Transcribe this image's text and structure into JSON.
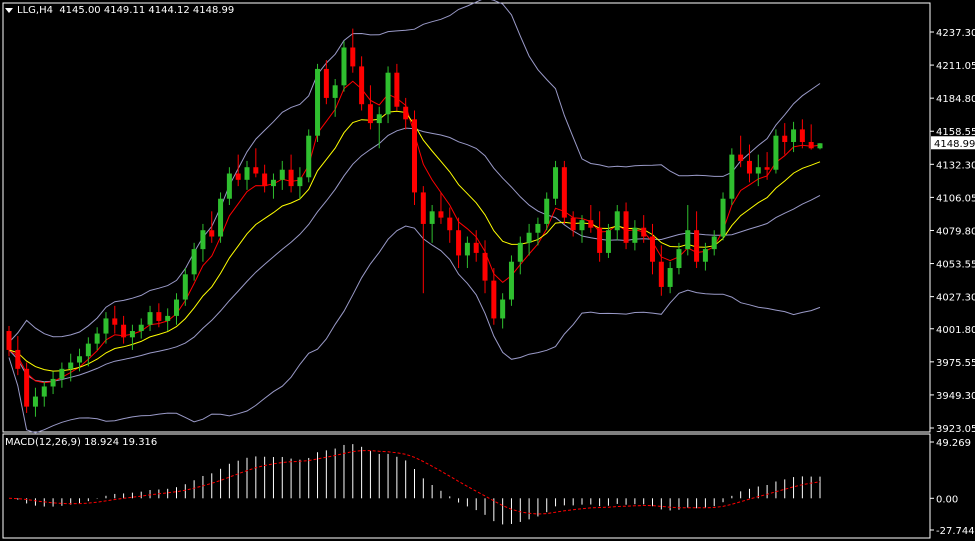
{
  "header": {
    "symbol": "LLG,H4",
    "ohlc": "4145.00 4149.11 4144.12 4148.99"
  },
  "price_axis": {
    "ticks": [
      "4237.30",
      "4211.05",
      "4184.80",
      "4158.55",
      "4132.30",
      "4106.05",
      "4079.80",
      "4053.55",
      "4027.30",
      "4001.80",
      "3975.55",
      "3949.30",
      "3923.05"
    ],
    "current_price": "4148.99",
    "min": 3923.05,
    "max": 4237.3
  },
  "macd": {
    "label": "MACD(12,26,9) 18.924 19.316",
    "ticks": [
      "49.269",
      "0.00",
      "-27.744"
    ],
    "min": -27.744,
    "max": 49.269
  },
  "colors": {
    "background": "#000000",
    "grid": "#ffffff",
    "bull": "#2fbf2f",
    "bear": "#ff0000",
    "ma_fast": "#ff0000",
    "ma_slow": "#ffff00",
    "bands": "#9a9ac8",
    "macd_hist": "#ffffff",
    "macd_signal": "#ff0000",
    "price_tag_bg": "#ffffff",
    "price_tag_text": "#000000"
  },
  "chart_data": {
    "type": "candlestick",
    "candles": [
      [
        4000,
        4004,
        3980,
        3985
      ],
      [
        3985,
        3996,
        3965,
        3970
      ],
      [
        3970,
        3975,
        3935,
        3940
      ],
      [
        3940,
        3955,
        3932,
        3948
      ],
      [
        3948,
        3960,
        3940,
        3956
      ],
      [
        3956,
        3968,
        3950,
        3962
      ],
      [
        3962,
        3975,
        3955,
        3970
      ],
      [
        3970,
        3982,
        3960,
        3975
      ],
      [
        3975,
        3986,
        3968,
        3980
      ],
      [
        3980,
        3995,
        3972,
        3990
      ],
      [
        3990,
        4003,
        3985,
        3998
      ],
      [
        3998,
        4015,
        3990,
        4010
      ],
      [
        4010,
        4020,
        3998,
        4005
      ],
      [
        4005,
        4012,
        3990,
        3995
      ],
      [
        3995,
        4005,
        3985,
        4000
      ],
      [
        4000,
        4010,
        3994,
        4005
      ],
      [
        4005,
        4020,
        4000,
        4015
      ],
      [
        4015,
        4022,
        4003,
        4008
      ],
      [
        4008,
        4018,
        4000,
        4012
      ],
      [
        4012,
        4030,
        4005,
        4025
      ],
      [
        4025,
        4050,
        4020,
        4045
      ],
      [
        4045,
        4070,
        4040,
        4065
      ],
      [
        4065,
        4085,
        4055,
        4080
      ],
      [
        4080,
        4095,
        4070,
        4075
      ],
      [
        4075,
        4110,
        4070,
        4105
      ],
      [
        4105,
        4130,
        4100,
        4125
      ],
      [
        4125,
        4140,
        4115,
        4120
      ],
      [
        4120,
        4135,
        4112,
        4130
      ],
      [
        4130,
        4145,
        4122,
        4125
      ],
      [
        4125,
        4132,
        4110,
        4115
      ],
      [
        4115,
        4125,
        4105,
        4120
      ],
      [
        4120,
        4135,
        4112,
        4128
      ],
      [
        4128,
        4140,
        4110,
        4115
      ],
      [
        4115,
        4130,
        4105,
        4122
      ],
      [
        4122,
        4160,
        4118,
        4155
      ],
      [
        4155,
        4212,
        4150,
        4208
      ],
      [
        4208,
        4215,
        4180,
        4185
      ],
      [
        4185,
        4200,
        4170,
        4195
      ],
      [
        4195,
        4230,
        4190,
        4225
      ],
      [
        4225,
        4240,
        4205,
        4210
      ],
      [
        4210,
        4218,
        4175,
        4180
      ],
      [
        4180,
        4195,
        4160,
        4165
      ],
      [
        4165,
        4178,
        4145,
        4172
      ],
      [
        4172,
        4210,
        4165,
        4205
      ],
      [
        4205,
        4212,
        4175,
        4178
      ],
      [
        4178,
        4185,
        4160,
        4168
      ],
      [
        4168,
        4175,
        4100,
        4110
      ],
      [
        4110,
        4115,
        4030,
        4085
      ],
      [
        4085,
        4100,
        4070,
        4095
      ],
      [
        4095,
        4110,
        4085,
        4090
      ],
      [
        4090,
        4098,
        4070,
        4080
      ],
      [
        4080,
        4090,
        4050,
        4060
      ],
      [
        4060,
        4075,
        4050,
        4070
      ],
      [
        4070,
        4080,
        4055,
        4062
      ],
      [
        4062,
        4072,
        4030,
        4040
      ],
      [
        4040,
        4050,
        4005,
        4010
      ],
      [
        4010,
        4030,
        4002,
        4025
      ],
      [
        4025,
        4060,
        4020,
        4055
      ],
      [
        4055,
        4075,
        4045,
        4070
      ],
      [
        4070,
        4085,
        4060,
        4078
      ],
      [
        4078,
        4090,
        4068,
        4085
      ],
      [
        4085,
        4110,
        4080,
        4105
      ],
      [
        4105,
        4135,
        4100,
        4130
      ],
      [
        4130,
        4135,
        4085,
        4090
      ],
      [
        4090,
        4095,
        4075,
        4080
      ],
      [
        4080,
        4092,
        4070,
        4088
      ],
      [
        4088,
        4100,
        4078,
        4082
      ],
      [
        4082,
        4095,
        4055,
        4062
      ],
      [
        4062,
        4085,
        4058,
        4080
      ],
      [
        4080,
        4100,
        4072,
        4095
      ],
      [
        4095,
        4102,
        4065,
        4070
      ],
      [
        4070,
        4088,
        4064,
        4082
      ],
      [
        4082,
        4092,
        4070,
        4075
      ],
      [
        4075,
        4085,
        4045,
        4055
      ],
      [
        4055,
        4068,
        4028,
        4035
      ],
      [
        4035,
        4055,
        4030,
        4050
      ],
      [
        4050,
        4070,
        4045,
        4065
      ],
      [
        4065,
        4100,
        4060,
        4080
      ],
      [
        4080,
        4095,
        4050,
        4055
      ],
      [
        4055,
        4070,
        4048,
        4065
      ],
      [
        4065,
        4080,
        4060,
        4075
      ],
      [
        4075,
        4110,
        4072,
        4105
      ],
      [
        4105,
        4145,
        4100,
        4140
      ],
      [
        4140,
        4155,
        4130,
        4135
      ],
      [
        4135,
        4148,
        4118,
        4125
      ],
      [
        4125,
        4140,
        4115,
        4130
      ],
      [
        4130,
        4142,
        4120,
        4128
      ],
      [
        4128,
        4160,
        4125,
        4155
      ],
      [
        4155,
        4165,
        4140,
        4150
      ],
      [
        4150,
        4166,
        4142,
        4160
      ],
      [
        4160,
        4168,
        4145,
        4150
      ],
      [
        4150,
        4164,
        4144,
        4145
      ],
      [
        4145,
        4149.11,
        4144.12,
        4148.99
      ]
    ]
  }
}
